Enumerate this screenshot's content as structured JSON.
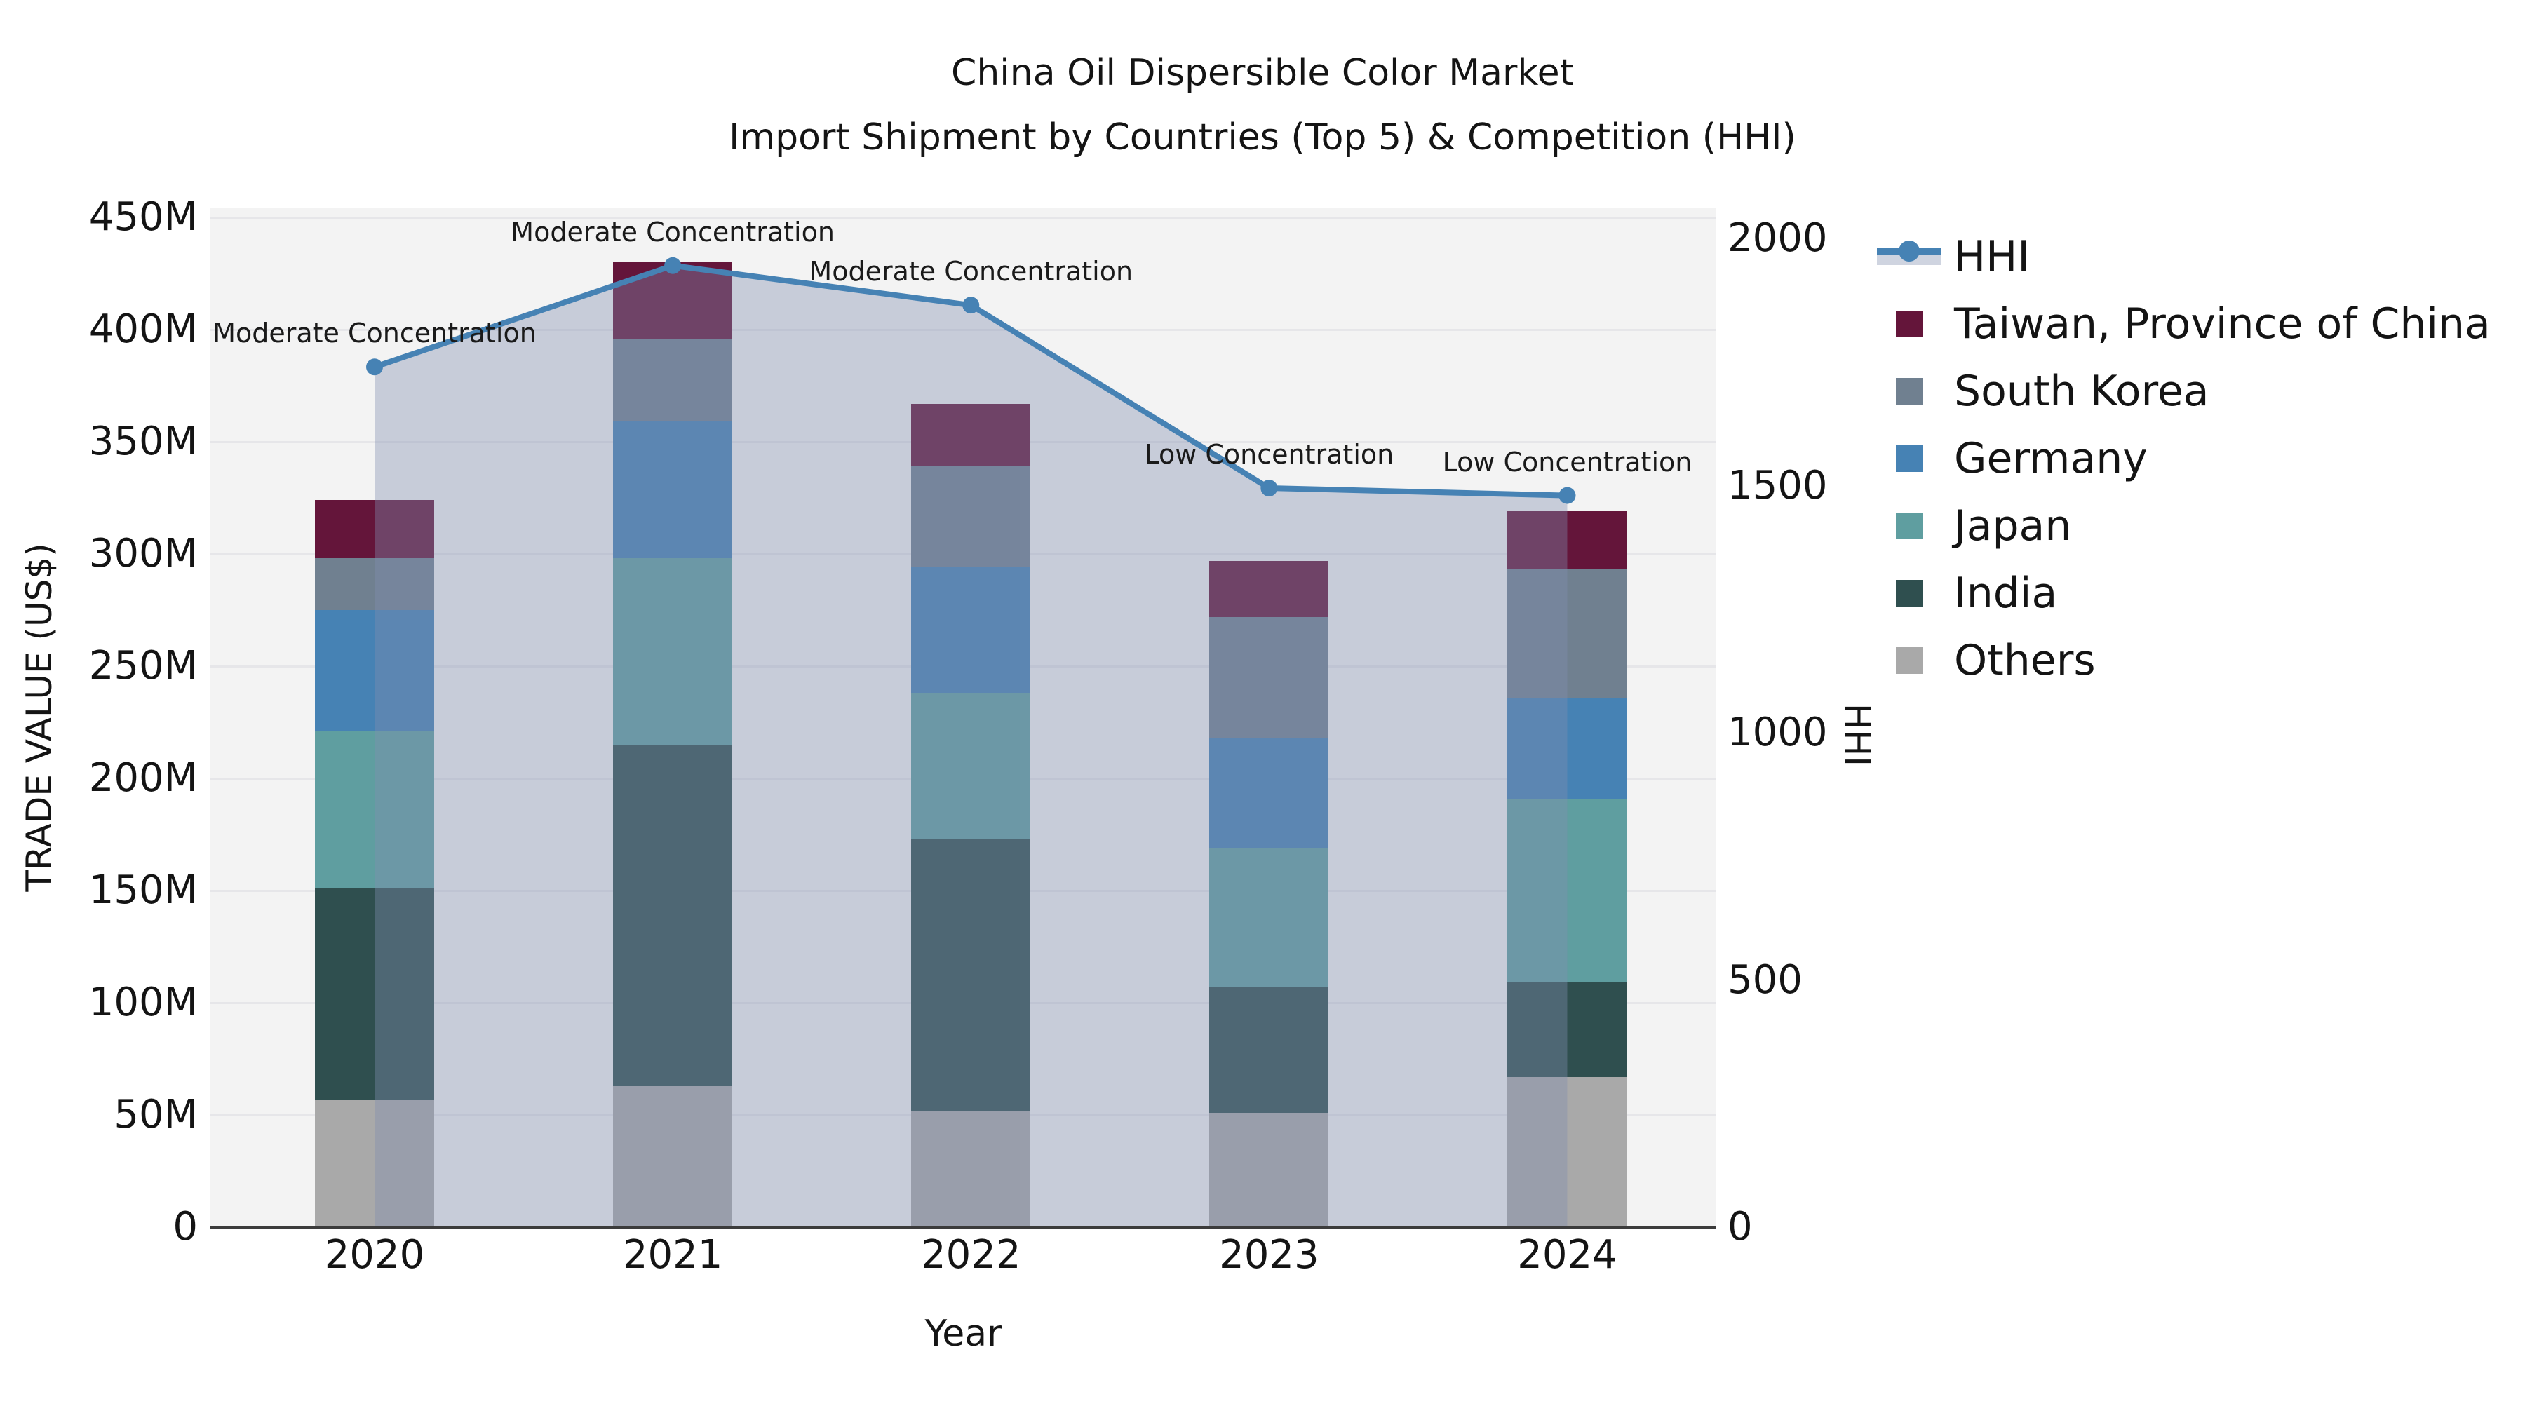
{
  "title": {
    "line1": "China Oil Dispersible Color Market",
    "line2": "Import Shipment by Countries (Top 5) & Competition (HHI)"
  },
  "axis_titles": {
    "left": "TRADE VALUE (US$)",
    "bottom": "Year",
    "right": "HHI"
  },
  "legend": {
    "items": [
      {
        "label": "HHI",
        "type": "line",
        "color": "#4682B4"
      },
      {
        "label": "Taiwan, Province of China",
        "type": "square",
        "color": "#64153A"
      },
      {
        "label": "South Korea",
        "type": "square",
        "color": "#708090"
      },
      {
        "label": "Germany",
        "type": "square",
        "color": "#4682B4"
      },
      {
        "label": "Japan",
        "type": "square",
        "color": "#5F9EA0"
      },
      {
        "label": "India",
        "type": "square",
        "color": "#2F4F4F"
      },
      {
        "label": "Others",
        "type": "square",
        "color": "#A9A9A9"
      }
    ]
  },
  "chart_data": {
    "type": "stacked-bar+line",
    "title": "China Oil Dispersible Color Market — Import Shipment by Countries (Top 5) & Competition (HHI)",
    "categories": [
      "2020",
      "2021",
      "2022",
      "2023",
      "2024"
    ],
    "unit_left": "Million US$",
    "stack_series_bottom_to_top": [
      {
        "name": "Others",
        "color": "#A9A9A9",
        "values": [
          57,
          63,
          52,
          51,
          67
        ]
      },
      {
        "name": "India",
        "color": "#2F4F4F",
        "values": [
          94,
          152,
          121,
          56,
          42
        ]
      },
      {
        "name": "Japan",
        "color": "#5F9EA0",
        "values": [
          70,
          83,
          65,
          62,
          82
        ]
      },
      {
        "name": "Germany",
        "color": "#4682B4",
        "values": [
          54,
          61,
          56,
          49,
          45
        ]
      },
      {
        "name": "South Korea",
        "color": "#708090",
        "values": [
          23,
          37,
          45,
          54,
          57
        ]
      },
      {
        "name": "Taiwan, Province of China",
        "color": "#64153A",
        "values": [
          26,
          34,
          28,
          25,
          26
        ]
      }
    ],
    "stack_totals": [
      324,
      430,
      367,
      297,
      319
    ],
    "line_series": {
      "name": "HHI",
      "axis": "right",
      "color": "#4682B4",
      "fill_color": "#808EAF",
      "fill_opacity": 0.38,
      "values": [
        1740,
        1945,
        1865,
        1495,
        1480
      ]
    },
    "annotations": [
      "Moderate Concentration",
      "Moderate Concentration",
      "Moderate Concentration",
      "Low Concentration",
      "Low Concentration"
    ],
    "y_left": {
      "label": "TRADE VALUE (US$)",
      "min": 0,
      "max": 450,
      "ticks": [
        "0",
        "50M",
        "100M",
        "150M",
        "200M",
        "250M",
        "300M",
        "350M",
        "400M",
        "450M"
      ]
    },
    "y_right": {
      "label": "HHI",
      "min": 0,
      "max": 2000,
      "ticks": [
        "0",
        "500",
        "1000",
        "1500",
        "2000"
      ]
    },
    "x_label": "Year",
    "grid": true,
    "legend_position": "right",
    "plot_background": "#f3f3f3"
  }
}
